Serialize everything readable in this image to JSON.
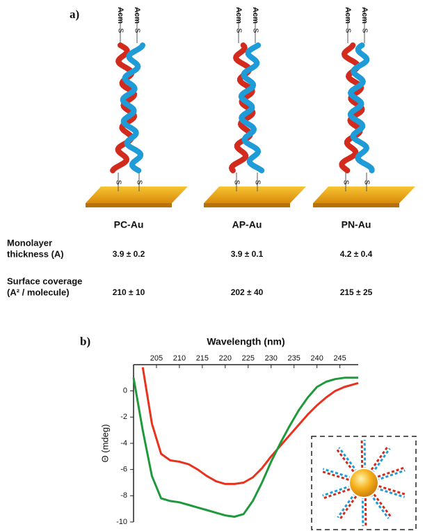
{
  "panel_a": {
    "label": "a)",
    "terminal_group": "Acm",
    "thiol": "S",
    "columns": [
      "PC-Au",
      "AP-Au",
      "PN-Au"
    ],
    "rows": [
      {
        "header": [
          "Monolayer",
          "thickness (A)"
        ],
        "values": [
          "3.9 ± 0.2",
          "3.9 ± 0.1",
          "4.2 ± 0.4"
        ]
      },
      {
        "header": [
          "Surface coverage",
          "(A² / molecule)"
        ],
        "values": [
          "210 ± 10",
          "202 ± 40",
          "215 ± 25"
        ]
      }
    ]
  },
  "chart_data": {
    "type": "line",
    "panel_label": "b)",
    "x_label": "Wavelength (nm)",
    "y_label": "Θ (mdeg)",
    "x": [
      200,
      202,
      204,
      206,
      208,
      210,
      212,
      214,
      216,
      218,
      220,
      222,
      224,
      226,
      228,
      230,
      232,
      234,
      236,
      238,
      240,
      242,
      244,
      246,
      248,
      249
    ],
    "series": [
      {
        "color": "#e8321e",
        "values": [
          null,
          1.8,
          -2.5,
          -4.8,
          -5.3,
          -5.4,
          -5.6,
          -6.0,
          -6.5,
          -6.9,
          -7.1,
          -7.1,
          -7.0,
          -6.6,
          -5.9,
          -5.0,
          -4.2,
          -3.4,
          -2.6,
          -1.8,
          -1.1,
          -0.5,
          0.0,
          0.3,
          0.5,
          0.6
        ]
      },
      {
        "color": "#1e9a3c",
        "values": [
          1.0,
          -3.0,
          -6.5,
          -8.2,
          -8.4,
          -8.5,
          -8.7,
          -8.9,
          -9.1,
          -9.3,
          -9.5,
          -9.6,
          -9.4,
          -8.4,
          -7.0,
          -5.4,
          -4.0,
          -2.7,
          -1.5,
          -0.5,
          0.3,
          0.7,
          0.9,
          1.0,
          1.0,
          1.0
        ]
      }
    ],
    "xlim": [
      200,
      249
    ],
    "ylim": [
      -10,
      2
    ],
    "xticks": [
      205,
      210,
      215,
      220,
      225,
      230,
      235,
      240,
      245
    ],
    "yticks": [
      0,
      -2,
      -4,
      -6,
      -8,
      -10
    ]
  }
}
